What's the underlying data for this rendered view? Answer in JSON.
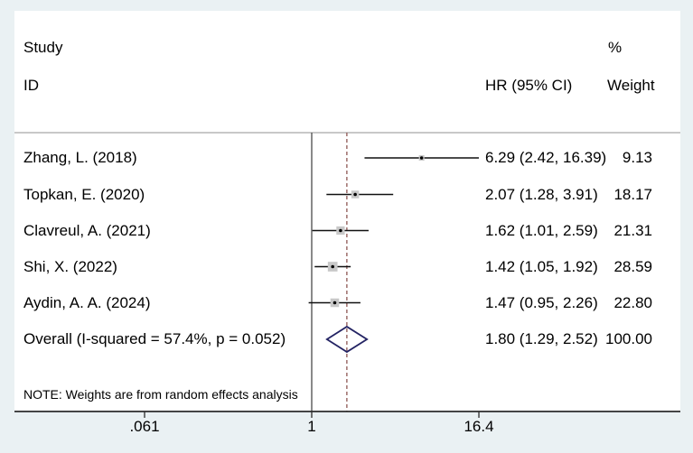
{
  "header": {
    "study": "Study",
    "id": "ID",
    "hr_ci": "HR (95% CI)",
    "percent": "%",
    "weight": "Weight"
  },
  "note": "NOTE: Weights are from random effects analysis",
  "colors": {
    "background": "#eaf1f3",
    "panel": "#ffffff",
    "text": "#000000",
    "axis_line": "#2b2b2b",
    "divider_line": "#a6a6a6",
    "null_line": "#4a4a4a",
    "overall_dashed_line": "#96625f",
    "ci_line": "#111111",
    "marker_fill": "#c8c8c8",
    "marker_dot": "#000000",
    "diamond_stroke": "#232363"
  },
  "chart_data": {
    "type": "forest",
    "x_scale": "log",
    "axis_ticks": [
      {
        "value": 0.061,
        "label": ".061"
      },
      {
        "value": 1,
        "label": "1"
      },
      {
        "value": 16.4,
        "label": "16.4"
      }
    ],
    "null_line_value": 1,
    "overall_dashed_value": 1.8,
    "studies": [
      {
        "label": "Zhang, L. (2018)",
        "hr": 6.29,
        "ci_low": 2.42,
        "ci_high": 16.39,
        "hr_ci_text": "6.29 (2.42, 16.39)",
        "weight_pct": 9.13,
        "weight_text": "9.13"
      },
      {
        "label": "Topkan, E. (2020)",
        "hr": 2.07,
        "ci_low": 1.28,
        "ci_high": 3.91,
        "hr_ci_text": "2.07 (1.28, 3.91)",
        "weight_pct": 18.17,
        "weight_text": "18.17"
      },
      {
        "label": "Clavreul, A. (2021)",
        "hr": 1.62,
        "ci_low": 1.01,
        "ci_high": 2.59,
        "hr_ci_text": "1.62 (1.01, 2.59)",
        "weight_pct": 21.31,
        "weight_text": "21.31"
      },
      {
        "label": "Shi, X. (2022)",
        "hr": 1.42,
        "ci_low": 1.05,
        "ci_high": 1.92,
        "hr_ci_text": "1.42 (1.05, 1.92)",
        "weight_pct": 28.59,
        "weight_text": "28.59"
      },
      {
        "label": "Aydin, A. A. (2024)",
        "hr": 1.47,
        "ci_low": 0.95,
        "ci_high": 2.26,
        "hr_ci_text": "1.47 (0.95, 2.26)",
        "weight_pct": 22.8,
        "weight_text": "22.80"
      }
    ],
    "overall": {
      "label": "Overall  (I-squared = 57.4%, p = 0.052)",
      "hr": 1.8,
      "ci_low": 1.29,
      "ci_high": 2.52,
      "hr_ci_text": "1.80 (1.29, 2.52)",
      "weight_text": "100.00"
    }
  }
}
